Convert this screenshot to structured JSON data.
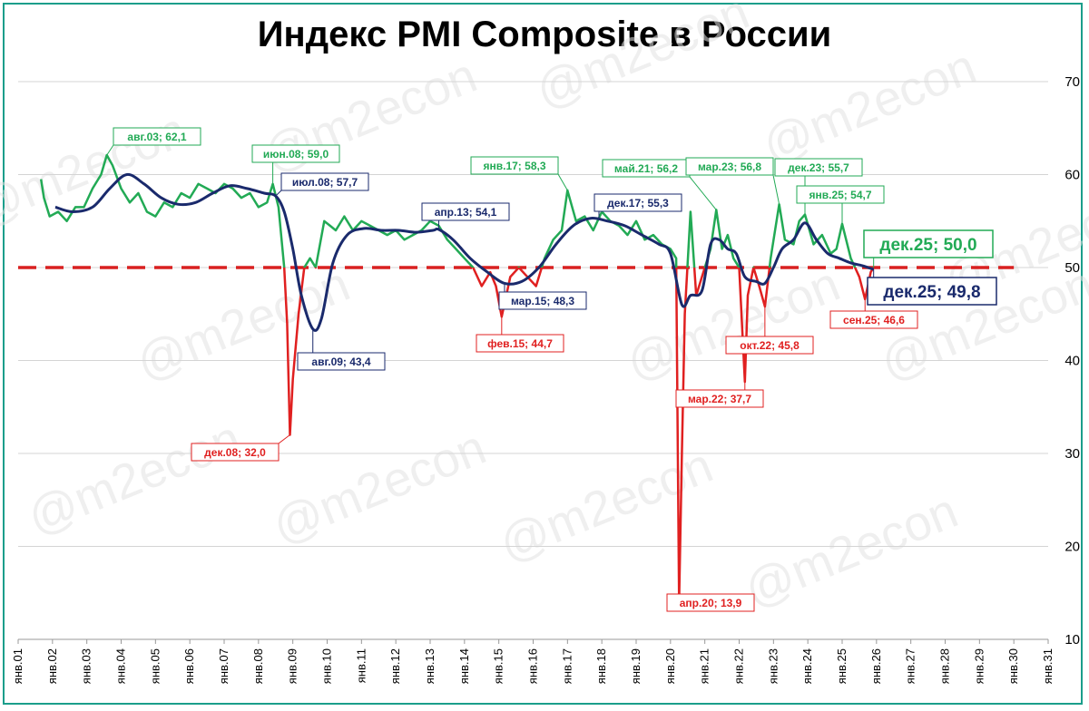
{
  "chart_data": {
    "type": "line",
    "title": "Индекс PMI Composite в России",
    "watermark": "@m2econ",
    "y_axis": {
      "min": 10,
      "max": 70,
      "ticks": [
        10,
        20,
        30,
        40,
        50,
        60,
        70
      ],
      "position": "right"
    },
    "x_axis": {
      "start": "2001-01",
      "end": "2031-01",
      "ticks": [
        "янв.01",
        "янв.02",
        "янв.03",
        "янв.04",
        "янв.05",
        "янв.06",
        "янв.07",
        "янв.08",
        "янв.09",
        "янв.10",
        "янв.11",
        "янв.12",
        "янв.13",
        "янв.14",
        "янв.15",
        "янв.16",
        "янв.17",
        "янв.18",
        "янв.19",
        "янв.20",
        "янв.21",
        "янв.22",
        "янв.23",
        "янв.24",
        "янв.25",
        "янв.26",
        "янв.27",
        "янв.28",
        "янв.29",
        "янв.30",
        "янв.31"
      ]
    },
    "grid": "horizontal",
    "threshold": {
      "value": 50,
      "color": "#d92020"
    },
    "colors": {
      "above": "#22aa55",
      "below": "#e02020",
      "trend": "#1a2a6c"
    },
    "series": [
      {
        "role": "monthly",
        "x": [
          "2001-09",
          "2001-10",
          "2001-12",
          "2002-03",
          "2002-06",
          "2002-09",
          "2002-12",
          "2003-03",
          "2003-06",
          "2003-08",
          "2003-10",
          "2004-01",
          "2004-04",
          "2004-07",
          "2004-10",
          "2005-01",
          "2005-04",
          "2005-07",
          "2005-10",
          "2006-01",
          "2006-04",
          "2006-07",
          "2006-10",
          "2007-01",
          "2007-04",
          "2007-07",
          "2007-10",
          "2008-01",
          "2008-04",
          "2008-06",
          "2008-08",
          "2008-10",
          "2008-11",
          "2008-12",
          "2009-01",
          "2009-03",
          "2009-05",
          "2009-07",
          "2009-09",
          "2009-12",
          "2010-02",
          "2010-04",
          "2010-07",
          "2010-10",
          "2011-01",
          "2011-04",
          "2011-07",
          "2011-10",
          "2012-01",
          "2012-04",
          "2012-07",
          "2012-10",
          "2013-01",
          "2013-04",
          "2013-07",
          "2013-10",
          "2014-01",
          "2014-04",
          "2014-07",
          "2014-10",
          "2014-12",
          "2015-02",
          "2015-05",
          "2015-08",
          "2015-11",
          "2016-02",
          "2016-05",
          "2016-08",
          "2016-11",
          "2017-01",
          "2017-04",
          "2017-07",
          "2017-10",
          "2018-01",
          "2018-04",
          "2018-07",
          "2018-10",
          "2019-01",
          "2019-04",
          "2019-07",
          "2019-10",
          "2020-01",
          "2020-03",
          "2020-04",
          "2020-05",
          "2020-06",
          "2020-08",
          "2020-10",
          "2020-12",
          "2021-03",
          "2021-05",
          "2021-07",
          "2021-09",
          "2021-11",
          "2022-01",
          "2022-03",
          "2022-04",
          "2022-06",
          "2022-08",
          "2022-10",
          "2022-12",
          "2023-03",
          "2023-05",
          "2023-08",
          "2023-10",
          "2023-12",
          "2024-03",
          "2024-06",
          "2024-09",
          "2024-11",
          "2025-01",
          "2025-04",
          "2025-07",
          "2025-09",
          "2025-11",
          "2025-12"
        ],
        "y": [
          59.5,
          57.5,
          55.5,
          56.0,
          55.0,
          56.5,
          56.5,
          58.5,
          60.0,
          62.1,
          61.0,
          58.5,
          57.0,
          58.0,
          56.0,
          55.5,
          57.0,
          56.5,
          58.0,
          57.5,
          59.0,
          58.5,
          58.0,
          59.0,
          58.5,
          57.5,
          58.0,
          56.5,
          57.0,
          59.0,
          56.5,
          50.0,
          44.0,
          32.0,
          38.0,
          45.0,
          50.0,
          51.0,
          50.0,
          55.0,
          54.5,
          54.0,
          55.5,
          54.0,
          55.0,
          54.5,
          54.0,
          53.5,
          54.0,
          53.0,
          53.5,
          54.0,
          55.0,
          54.5,
          53.0,
          52.0,
          51.0,
          50.0,
          48.0,
          49.5,
          48.0,
          44.7,
          49.0,
          50.0,
          49.0,
          48.0,
          51.0,
          53.0,
          54.0,
          58.3,
          55.0,
          55.5,
          54.0,
          56.0,
          55.0,
          54.5,
          53.5,
          55.0,
          53.0,
          53.5,
          52.5,
          52.0,
          51.0,
          13.9,
          30.0,
          45.0,
          56.0,
          47.0,
          49.0,
          52.0,
          56.2,
          52.0,
          53.5,
          51.0,
          50.0,
          37.7,
          47.0,
          50.0,
          48.0,
          45.8,
          51.0,
          56.8,
          53.0,
          52.5,
          55.0,
          55.7,
          52.5,
          53.5,
          51.5,
          52.0,
          54.7,
          51.0,
          49.0,
          46.6,
          49.5,
          50.0
        ]
      },
      {
        "role": "trend",
        "x": [
          "2002-02",
          "2002-08",
          "2003-03",
          "2003-09",
          "2004-03",
          "2004-09",
          "2005-03",
          "2005-09",
          "2006-03",
          "2006-09",
          "2007-03",
          "2007-09",
          "2008-03",
          "2008-07",
          "2008-10",
          "2009-01",
          "2009-04",
          "2009-08",
          "2009-11",
          "2010-03",
          "2010-08",
          "2011-02",
          "2011-08",
          "2012-02",
          "2012-08",
          "2013-02",
          "2013-04",
          "2013-09",
          "2014-03",
          "2014-09",
          "2015-03",
          "2015-09",
          "2016-03",
          "2016-09",
          "2017-03",
          "2017-09",
          "2018-03",
          "2018-09",
          "2019-03",
          "2019-09",
          "2020-01",
          "2020-05",
          "2020-08",
          "2020-12",
          "2021-03",
          "2021-06",
          "2021-09",
          "2021-12",
          "2022-03",
          "2022-07",
          "2022-10",
          "2023-01",
          "2023-04",
          "2023-08",
          "2023-12",
          "2024-04",
          "2024-08",
          "2024-12",
          "2025-04",
          "2025-08",
          "2025-12"
        ],
        "y": [
          56.5,
          56.0,
          56.5,
          58.5,
          60.0,
          59.0,
          57.5,
          56.8,
          57.0,
          58.0,
          58.8,
          58.5,
          58.0,
          57.7,
          56.0,
          52.0,
          47.0,
          43.4,
          44.5,
          50.5,
          53.5,
          54.2,
          54.0,
          54.0,
          53.8,
          54.0,
          54.1,
          53.0,
          51.0,
          49.5,
          48.3,
          48.5,
          50.0,
          52.5,
          54.5,
          55.3,
          55.0,
          54.5,
          53.5,
          52.5,
          51.5,
          46.0,
          47.0,
          47.5,
          52.5,
          53.0,
          52.0,
          51.5,
          49.0,
          48.5,
          48.3,
          50.0,
          52.0,
          53.0,
          54.8,
          53.0,
          51.5,
          51.0,
          50.5,
          50.2,
          49.8
        ]
      }
    ],
    "annotations": [
      {
        "text": "авг.03; 62,1",
        "color": "#22aa55"
      },
      {
        "text": "июн.08; 59,0",
        "color": "#22aa55"
      },
      {
        "text": "июл.08; 57,7",
        "color": "#1a2a6c"
      },
      {
        "text": "дек.08; 32,0",
        "color": "#e02020"
      },
      {
        "text": "авг.09; 43,4",
        "color": "#1a2a6c"
      },
      {
        "text": "апр.13; 54,1",
        "color": "#1a2a6c"
      },
      {
        "text": "янв.17; 58,3",
        "color": "#22aa55"
      },
      {
        "text": "мар.15; 48,3",
        "color": "#1a2a6c"
      },
      {
        "text": "фев.15; 44,7",
        "color": "#e02020"
      },
      {
        "text": "дек.17; 55,3",
        "color": "#1a2a6c"
      },
      {
        "text": "май.21; 56,2",
        "color": "#22aa55"
      },
      {
        "text": "мар.23; 56,8",
        "color": "#22aa55"
      },
      {
        "text": "дек.23; 55,7",
        "color": "#22aa55"
      },
      {
        "text": "янв.25; 54,7",
        "color": "#22aa55"
      },
      {
        "text": "дек.25; 50,0",
        "color": "#22aa55"
      },
      {
        "text": "дек.25; 49,8",
        "color": "#1a2a6c"
      },
      {
        "text": "апр.20; 13,9",
        "color": "#e02020"
      },
      {
        "text": "мар.22; 37,7",
        "color": "#e02020"
      },
      {
        "text": "окт.22; 45,8",
        "color": "#e02020"
      },
      {
        "text": "сен.25; 46,6",
        "color": "#e02020"
      }
    ]
  }
}
